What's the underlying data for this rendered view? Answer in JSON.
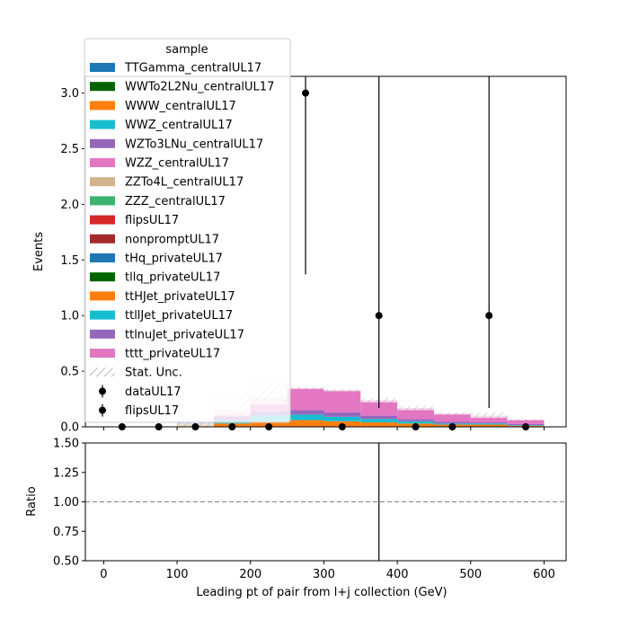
{
  "chart_data": {
    "type": "bar",
    "xlabel": "Leading pt of pair from l+j collection (GeV)",
    "main": {
      "ylabel": "Events",
      "ylim": [
        0,
        3.15
      ],
      "xlim": [
        -25,
        630
      ],
      "yticks": [
        "0.0",
        "0.5",
        "1.0",
        "1.5",
        "2.0",
        "2.5",
        "3.0"
      ],
      "ytick_values": [
        0,
        0.5,
        1.0,
        1.5,
        2.0,
        2.5,
        3.0
      ]
    },
    "ratio": {
      "ylabel": "Ratio",
      "ylim": [
        0.5,
        1.5
      ],
      "yticks": [
        "0.50",
        "0.75",
        "1.00",
        "1.25",
        "1.50"
      ],
      "ytick_values": [
        0.5,
        0.75,
        1.0,
        1.25,
        1.5
      ],
      "reference_line": 1.0,
      "errorbars": [
        {
          "x": 375,
          "low": 0.5,
          "high": 1.5
        }
      ]
    },
    "xticks": [
      "0",
      "100",
      "200",
      "300",
      "400",
      "500",
      "600"
    ],
    "xtick_values": [
      0,
      100,
      200,
      300,
      400,
      500,
      600
    ],
    "bin_edges": [
      0,
      50,
      100,
      150,
      200,
      250,
      300,
      350,
      400,
      450,
      500,
      550,
      600
    ],
    "stack": [
      {
        "name": "WWW_centralUL17",
        "color": "#ff7f0e",
        "values": [
          0,
          0,
          0.02,
          0.03,
          0.05,
          0.06,
          0.05,
          0.04,
          0.03,
          0.02,
          0.02,
          0.01
        ]
      },
      {
        "name": "WWZ_centralUL17",
        "color": "#17becf",
        "values": [
          0,
          0,
          0.01,
          0.03,
          0.05,
          0.05,
          0.04,
          0.03,
          0.02,
          0.01,
          0.01,
          0.005
        ]
      },
      {
        "name": "WZTo3LNu_centralUL17",
        "color": "#9467bd",
        "values": [
          0,
          0,
          0.01,
          0.03,
          0.04,
          0.04,
          0.04,
          0.03,
          0.02,
          0.015,
          0.01,
          0.01
        ]
      },
      {
        "name": "tttt_privateUL17",
        "color": "#e377c2",
        "values": [
          0,
          0,
          0.01,
          0.06,
          0.12,
          0.2,
          0.2,
          0.14,
          0.1,
          0.075,
          0.06,
          0.035
        ]
      }
    ],
    "stat_unc": {
      "up": [
        0,
        0,
        0.08,
        0.3,
        0.43,
        0.36,
        0.34,
        0.26,
        0.19,
        0.13,
        0.13,
        0.07
      ],
      "down": [
        0,
        0,
        0.0,
        0.1,
        0.2,
        0.34,
        0.32,
        0.22,
        0.15,
        0.11,
        0.08,
        0.06
      ]
    },
    "data_points": {
      "x": [
        25,
        75,
        125,
        175,
        225,
        275,
        325,
        375,
        425,
        475,
        525,
        575
      ],
      "y": [
        0,
        0,
        0,
        0,
        0,
        3.0,
        0,
        1.0,
        0,
        0,
        1.0,
        0
      ],
      "err_low": [
        0,
        0,
        0,
        0,
        0,
        1.63,
        0,
        0.83,
        0,
        0,
        0.83,
        0
      ],
      "err_high": [
        0,
        0,
        0,
        0,
        0,
        2.36,
        0,
        2.3,
        0,
        0,
        2.3,
        0
      ]
    },
    "legend": {
      "title": "sample",
      "placement": "upper-left",
      "entries": [
        {
          "label": "TTGamma_centralUL17",
          "kind": "patch",
          "color": "#1f77b4"
        },
        {
          "label": "WWTo2L2Nu_centralUL17",
          "kind": "patch",
          "color": "#006400"
        },
        {
          "label": "WWW_centralUL17",
          "kind": "patch",
          "color": "#ff7f0e"
        },
        {
          "label": "WWZ_centralUL17",
          "kind": "patch",
          "color": "#17becf"
        },
        {
          "label": "WZTo3LNu_centralUL17",
          "kind": "patch",
          "color": "#9467bd"
        },
        {
          "label": "WZZ_centralUL17",
          "kind": "patch",
          "color": "#e377c2"
        },
        {
          "label": "ZZTo4L_centralUL17",
          "kind": "patch",
          "color": "#d2b48c"
        },
        {
          "label": "ZZZ_centralUL17",
          "kind": "patch",
          "color": "#3cb371"
        },
        {
          "label": "flipsUL17",
          "kind": "patch",
          "color": "#d62728"
        },
        {
          "label": "nonpromptUL17",
          "kind": "patch",
          "color": "#a52a2a"
        },
        {
          "label": "tHq_privateUL17",
          "kind": "patch",
          "color": "#1f77b4"
        },
        {
          "label": "tllq_privateUL17",
          "kind": "patch",
          "color": "#006400"
        },
        {
          "label": "ttHJet_privateUL17",
          "kind": "patch",
          "color": "#ff7f0e"
        },
        {
          "label": "ttllJet_privateUL17",
          "kind": "patch",
          "color": "#17becf"
        },
        {
          "label": "ttlnuJet_privateUL17",
          "kind": "patch",
          "color": "#9467bd"
        },
        {
          "label": "tttt_privateUL17",
          "kind": "patch",
          "color": "#e377c2"
        },
        {
          "label": "Stat. Unc.",
          "kind": "hatch",
          "color": "#808080"
        },
        {
          "label": "dataUL17",
          "kind": "errorbar",
          "color": "#000000"
        },
        {
          "label": "flipsUL17",
          "kind": "errorbar",
          "color": "#000000"
        }
      ]
    }
  }
}
